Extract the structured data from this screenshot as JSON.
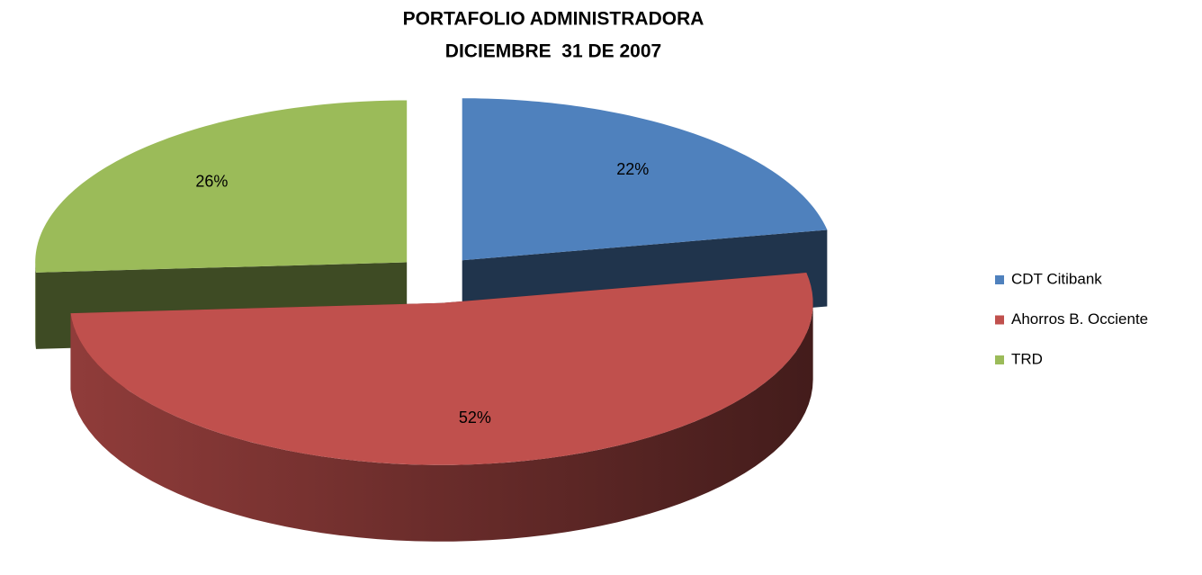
{
  "chart_data": {
    "type": "pie3d",
    "title": "PORTAFOLIO ADMINISTRADORA",
    "subtitle": "DICIEMBRE  31 DE 2007",
    "categories": [
      "CDT Citibank",
      "Ahorros B. Occiente",
      "TRD"
    ],
    "values": [
      22,
      52,
      26
    ],
    "value_labels": [
      "22%",
      "52%",
      "26%"
    ],
    "colors": [
      "#4f81bd",
      "#c0504d",
      "#9bbb59"
    ],
    "legend": "right"
  }
}
